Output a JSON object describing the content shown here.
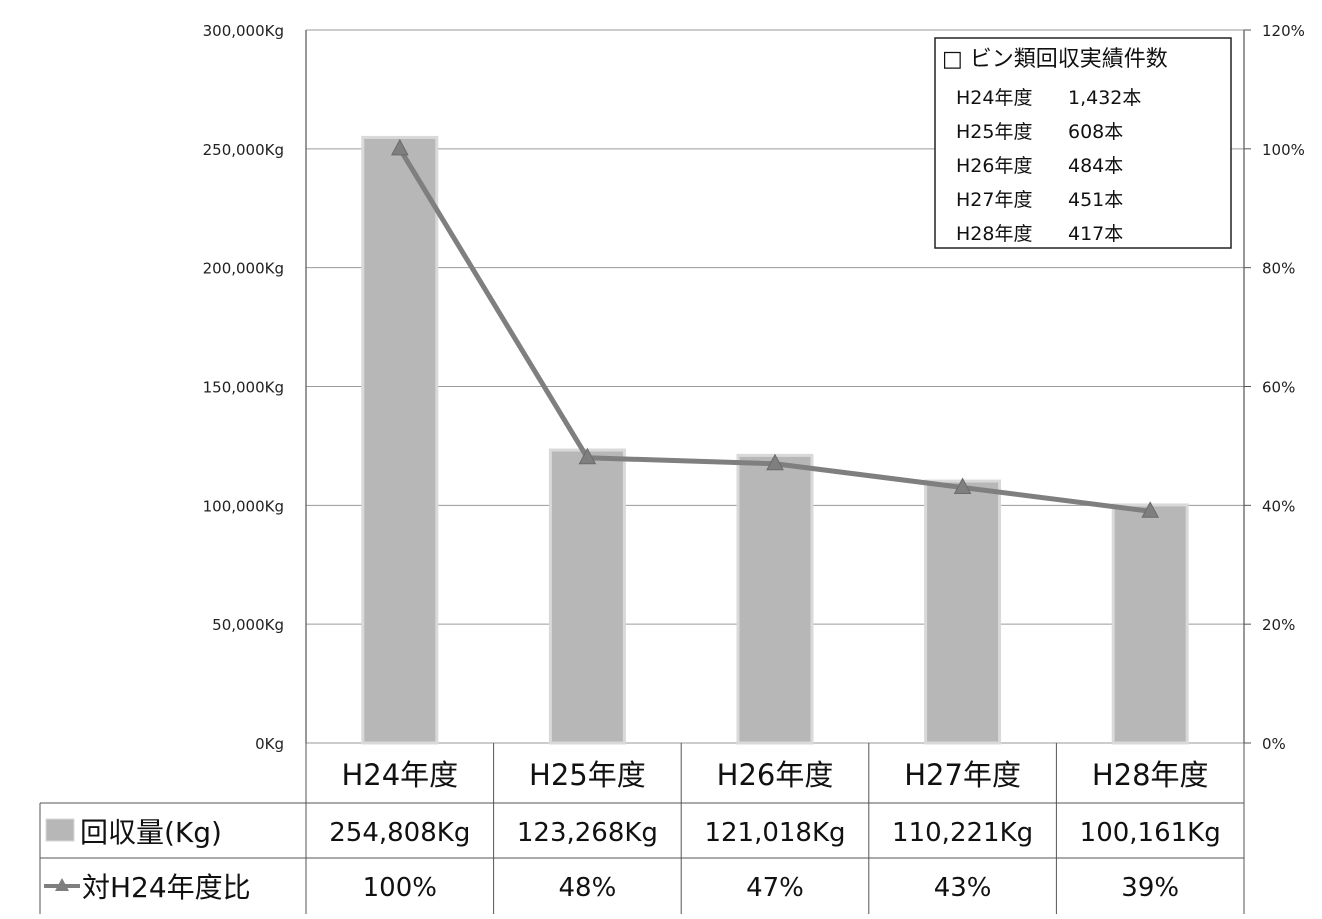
{
  "chart_data": {
    "type": "bar",
    "categories": [
      "H24年度",
      "H25年度",
      "H26年度",
      "H27年度",
      "H28年度"
    ],
    "series": [
      {
        "name": "回収量(Kg)",
        "kind": "bar",
        "axis": "left",
        "values": [
          254808,
          123268,
          121018,
          110221,
          100161
        ]
      },
      {
        "name": "対H24年度比",
        "kind": "line",
        "axis": "right",
        "marker": "triangle",
        "values": [
          100,
          48,
          47,
          43,
          39
        ]
      }
    ],
    "y_left": {
      "ylim": [
        0,
        300000
      ],
      "ticks": [
        {
          "value": 0,
          "label": "0Kg"
        },
        {
          "value": 50000,
          "label": "50,000Kg"
        },
        {
          "value": 100000,
          "label": "100,000Kg"
        },
        {
          "value": 150000,
          "label": "150,000Kg"
        },
        {
          "value": 200000,
          "label": "200,000Kg"
        },
        {
          "value": 250000,
          "label": "250,000Kg"
        },
        {
          "value": 300000,
          "label": "300,000Kg"
        }
      ]
    },
    "y_right": {
      "ylim": [
        0,
        120
      ],
      "ticks": [
        {
          "value": 0,
          "label": "0%"
        },
        {
          "value": 20,
          "label": "20%"
        },
        {
          "value": 40,
          "label": "40%"
        },
        {
          "value": 60,
          "label": "60%"
        },
        {
          "value": 80,
          "label": "80%"
        },
        {
          "value": 100,
          "label": "100%"
        },
        {
          "value": 120,
          "label": "120%"
        }
      ]
    },
    "data_table": {
      "rows": [
        {
          "label": "回収量(Kg)",
          "cells": [
            "254,808Kg",
            "123,268Kg",
            "121,018Kg",
            "110,221Kg",
            "100,161Kg"
          ]
        },
        {
          "label": "対H24年度比",
          "cells": [
            "100%",
            "48%",
            "47%",
            "43%",
            "39%"
          ]
        }
      ]
    },
    "annotation_box": {
      "title": "□ ビン類回収実績件数",
      "lines": [
        {
          "year": "H24年度",
          "count": "1,432本"
        },
        {
          "year": "H25年度",
          "count": "608本"
        },
        {
          "year": "H26年度",
          "count": "484本"
        },
        {
          "year": "H27年度",
          "count": "451本"
        },
        {
          "year": "H28年度",
          "count": "417本"
        }
      ]
    },
    "grid": true,
    "colors": {
      "bar": "#b7b7b7",
      "bar_edge": "#d9d9d9",
      "line": "#7f7f7f",
      "grid": "#9a9a9a",
      "axis": "#555555"
    }
  }
}
